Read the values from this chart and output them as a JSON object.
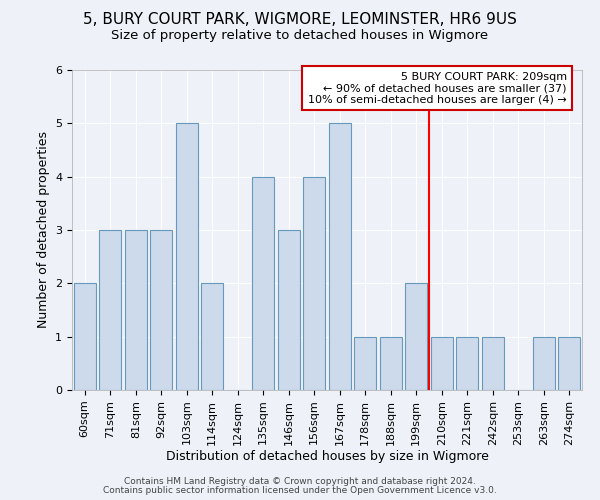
{
  "title": "5, BURY COURT PARK, WIGMORE, LEOMINSTER, HR6 9US",
  "subtitle": "Size of property relative to detached houses in Wigmore",
  "xlabel": "Distribution of detached houses by size in Wigmore",
  "ylabel": "Number of detached properties",
  "categories": [
    "60sqm",
    "71sqm",
    "81sqm",
    "92sqm",
    "103sqm",
    "114sqm",
    "124sqm",
    "135sqm",
    "146sqm",
    "156sqm",
    "167sqm",
    "178sqm",
    "188sqm",
    "199sqm",
    "210sqm",
    "221sqm",
    "242sqm",
    "253sqm",
    "263sqm",
    "274sqm"
  ],
  "values": [
    2,
    3,
    3,
    3,
    5,
    2,
    0,
    4,
    3,
    4,
    5,
    1,
    1,
    2,
    1,
    1,
    1,
    0,
    1,
    1
  ],
  "bar_color": "#ccdaeb",
  "bar_edge_color": "#6699bb",
  "red_line_index": 14,
  "annotation_text": "5 BURY COURT PARK: 209sqm\n← 90% of detached houses are smaller (37)\n10% of semi-detached houses are larger (4) →",
  "annotation_box_color": "#ffffff",
  "annotation_border_color": "#cc0000",
  "ylim": [
    0,
    6
  ],
  "yticks": [
    0,
    1,
    2,
    3,
    4,
    5,
    6
  ],
  "footer_line1": "Contains HM Land Registry data © Crown copyright and database right 2024.",
  "footer_line2": "Contains public sector information licensed under the Open Government Licence v3.0.",
  "background_color": "#eef2f8",
  "title_fontsize": 11,
  "subtitle_fontsize": 9.5,
  "axis_label_fontsize": 9,
  "tick_fontsize": 8,
  "footer_fontsize": 6.5
}
